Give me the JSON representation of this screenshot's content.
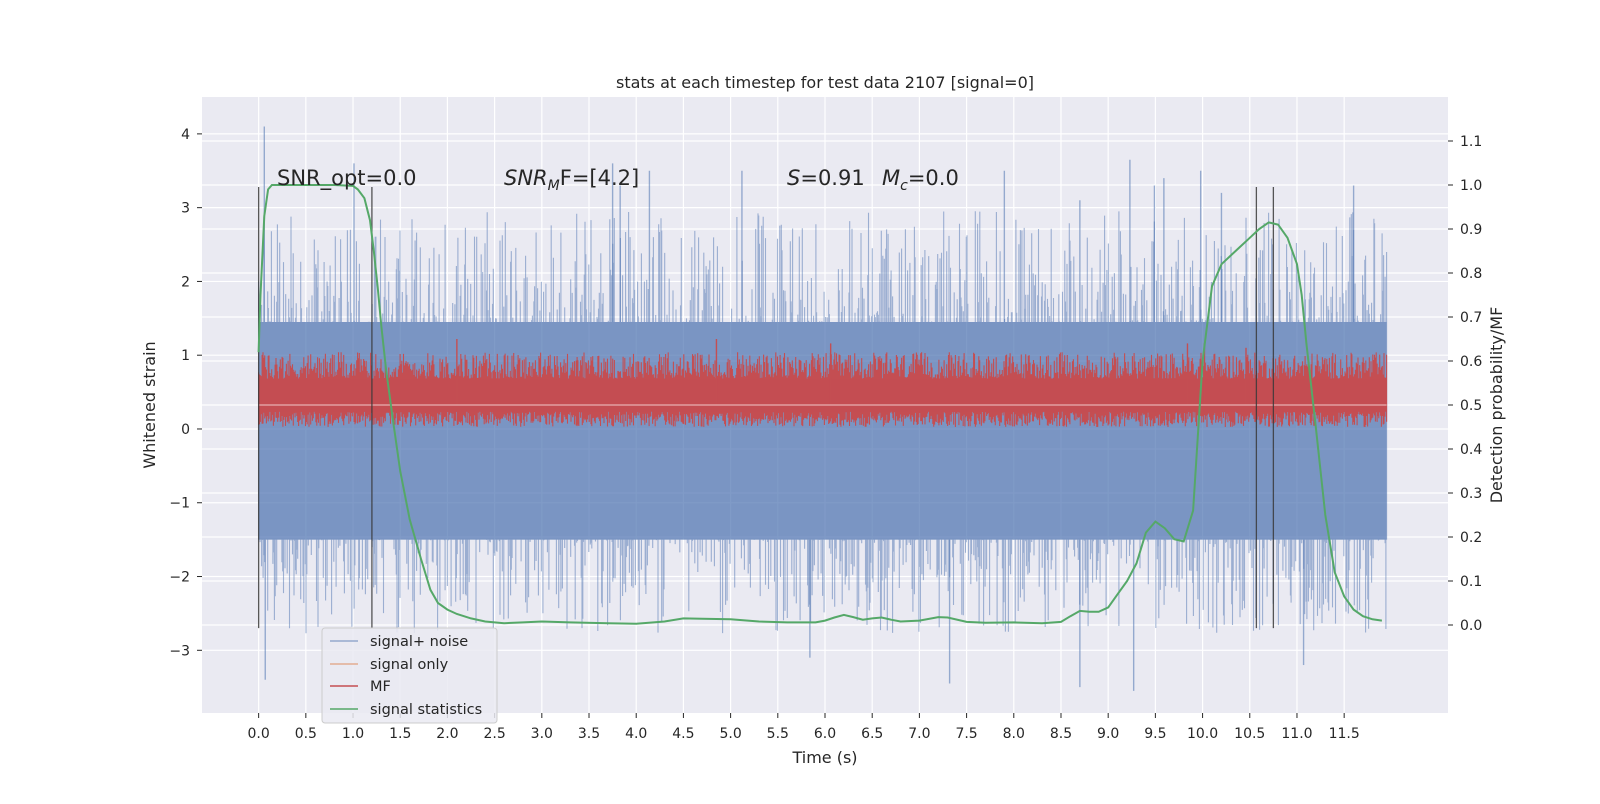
{
  "chart_data": {
    "type": "line",
    "title": "stats at each timestep for test data 2107 [signal=0]",
    "xlabel": "Time (s)",
    "ylabel_left": "Whitened strain",
    "ylabel_right": "Detection probability/MF",
    "xlim": [
      -0.6,
      12.6
    ],
    "ylim_left": [
      -3.85,
      4.5
    ],
    "ylim_right": [
      -0.2,
      1.2
    ],
    "x_ticks": [
      "0.0",
      "0.5",
      "1.0",
      "1.5",
      "2.0",
      "2.5",
      "3.0",
      "3.5",
      "4.0",
      "4.5",
      "5.0",
      "5.5",
      "6.0",
      "6.5",
      "7.0",
      "7.5",
      "8.0",
      "8.5",
      "9.0",
      "9.5",
      "10.0",
      "10.5",
      "11.0",
      "11.5"
    ],
    "x_tick_values": [
      0,
      0.5,
      1,
      1.5,
      2,
      2.5,
      3,
      3.5,
      4,
      4.5,
      5,
      5.5,
      6,
      6.5,
      7,
      7.5,
      8,
      8.5,
      9,
      9.5,
      10,
      10.5,
      11,
      11.5
    ],
    "y_ticks_left": [
      "−3",
      "−2",
      "−1",
      "0",
      "1",
      "2",
      "3",
      "4"
    ],
    "y_tick_values_left": [
      -3,
      -2,
      -1,
      0,
      1,
      2,
      3,
      4
    ],
    "y_ticks_right": [
      "0.0",
      "0.1",
      "0.2",
      "0.3",
      "0.4",
      "0.5",
      "0.6",
      "0.7",
      "0.8",
      "0.9",
      "1.0",
      "1.1"
    ],
    "y_tick_values_right": [
      0,
      0.1,
      0.2,
      0.3,
      0.4,
      0.5,
      0.6,
      0.7,
      0.8,
      0.9,
      1.0,
      1.1
    ],
    "grid": true,
    "background": "#eaeaf2",
    "annotations": {
      "snr_opt": "SNR_opt=0.0",
      "snr_mf_prefix": "SNR",
      "snr_mf_sub": "M",
      "snr_mf_suffix": "F=[4.2]",
      "s_label": "S",
      "s_value": "=0.91",
      "mc_label": "M",
      "mc_sub": "c",
      "mc_value": "=0.0"
    },
    "vertical_markers_x": [
      0.0,
      1.2,
      10.57,
      10.75
    ],
    "series": [
      {
        "name": "signal+ noise",
        "color": "#4c72b0",
        "axis": "left",
        "x_range": [
          0,
          11.95
        ],
        "envelope": {
          "core_min": -1.5,
          "core_max": 1.45,
          "peak_min": -3.55,
          "peak_max": 4.1
        },
        "notable_peaks": [
          [
            0.06,
            4.1
          ],
          [
            0.07,
            -3.4
          ],
          [
            1.01,
            3.6
          ],
          [
            3.75,
            3.6
          ],
          [
            3.83,
            3.3
          ],
          [
            4.14,
            3.5
          ],
          [
            5.12,
            3.5
          ],
          [
            7.9,
            3.5
          ],
          [
            8.7,
            3.1
          ],
          [
            9.23,
            3.65
          ],
          [
            9.49,
            3.3
          ],
          [
            9.59,
            3.4
          ],
          [
            9.98,
            3.5
          ],
          [
            10.2,
            3.2
          ],
          [
            11.6,
            3.3
          ],
          [
            5.84,
            -3.1
          ],
          [
            7.32,
            -3.45
          ],
          [
            8.7,
            -3.5
          ],
          [
            9.27,
            -3.55
          ],
          [
            11.07,
            -3.2
          ]
        ]
      },
      {
        "name": "signal only",
        "color": "#dd8452",
        "axis": "left",
        "values_constant": 0.0
      },
      {
        "name": "MF",
        "color": "#c44e52",
        "axis": "right",
        "x_range": [
          0,
          11.95
        ],
        "baseline": 0.5,
        "envelope": {
          "min": 0.45,
          "max": 0.62
        },
        "notable_peaks": [
          [
            2.1,
            0.65
          ],
          [
            4.85,
            0.65
          ],
          [
            6.06,
            0.64
          ],
          [
            9.84,
            0.64
          ],
          [
            10.02,
            0.64
          ],
          [
            10.46,
            0.63
          ]
        ]
      },
      {
        "name": "signal statistics",
        "color": "#55a868",
        "axis": "right",
        "x": [
          0.0,
          0.02,
          0.06,
          0.1,
          0.14,
          0.2,
          0.3,
          0.5,
          0.8,
          1.0,
          1.05,
          1.12,
          1.18,
          1.22,
          1.26,
          1.3,
          1.35,
          1.42,
          1.5,
          1.6,
          1.72,
          1.82,
          1.9,
          2.0,
          2.1,
          2.25,
          2.4,
          2.6,
          2.8,
          3.0,
          3.3,
          3.7,
          4.0,
          4.3,
          4.5,
          4.7,
          5.0,
          5.3,
          5.6,
          5.9,
          6.0,
          6.1,
          6.2,
          6.3,
          6.4,
          6.5,
          6.6,
          6.7,
          6.8,
          7.0,
          7.2,
          7.3,
          7.5,
          7.7,
          8.0,
          8.3,
          8.5,
          8.6,
          8.7,
          8.8,
          8.9,
          9.0,
          9.1,
          9.2,
          9.3,
          9.4,
          9.5,
          9.6,
          9.7,
          9.8,
          9.9,
          10.0,
          10.1,
          10.2,
          10.3,
          10.4,
          10.5,
          10.6,
          10.7,
          10.8,
          10.9,
          11.0,
          11.05,
          11.1,
          11.2,
          11.3,
          11.4,
          11.5,
          11.6,
          11.7,
          11.8,
          11.9
        ],
        "values": [
          0.62,
          0.75,
          0.93,
          0.99,
          1.0,
          1.0,
          1.0,
          1.0,
          1.0,
          0.998,
          0.99,
          0.97,
          0.92,
          0.85,
          0.77,
          0.68,
          0.58,
          0.47,
          0.35,
          0.24,
          0.15,
          0.08,
          0.05,
          0.035,
          0.025,
          0.015,
          0.008,
          0.004,
          0.006,
          0.008,
          0.006,
          0.004,
          0.003,
          0.008,
          0.015,
          0.014,
          0.013,
          0.008,
          0.006,
          0.006,
          0.01,
          0.017,
          0.023,
          0.018,
          0.012,
          0.015,
          0.017,
          0.012,
          0.008,
          0.01,
          0.018,
          0.017,
          0.007,
          0.005,
          0.006,
          0.004,
          0.007,
          0.02,
          0.032,
          0.03,
          0.03,
          0.04,
          0.07,
          0.1,
          0.14,
          0.21,
          0.235,
          0.22,
          0.195,
          0.19,
          0.26,
          0.6,
          0.77,
          0.82,
          0.84,
          0.86,
          0.88,
          0.9,
          0.915,
          0.91,
          0.88,
          0.82,
          0.75,
          0.64,
          0.45,
          0.25,
          0.12,
          0.065,
          0.035,
          0.02,
          0.013,
          0.01
        ]
      }
    ],
    "legend": {
      "position": "lower-left",
      "entries": [
        {
          "label": "signal+ noise",
          "color": "#4c72b0"
        },
        {
          "label": "signal only",
          "color": "#dd8452"
        },
        {
          "label": "MF",
          "color": "#c44e52"
        },
        {
          "label": "signal statistics",
          "color": "#55a868"
        }
      ]
    }
  }
}
